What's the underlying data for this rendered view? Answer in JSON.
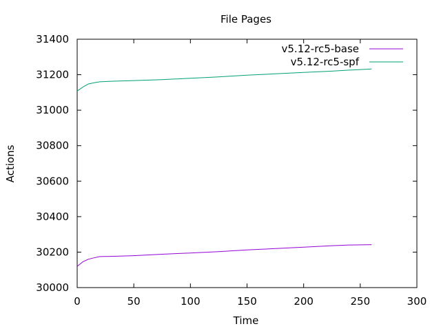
{
  "chart_data": {
    "type": "line",
    "title": "File Pages",
    "xlabel": "Time",
    "ylabel": "Actions",
    "xlim": [
      0,
      300
    ],
    "ylim": [
      30000,
      31400
    ],
    "x_ticks": [
      0,
      50,
      100,
      150,
      200,
      250,
      300
    ],
    "y_ticks": [
      30000,
      30200,
      30400,
      30600,
      30800,
      31000,
      31200,
      31400
    ],
    "grid": false,
    "legend_position": "top-right",
    "series": [
      {
        "name": "v5.12-rc5-base",
        "color": "#9400d3",
        "x": [
          0,
          5,
          10,
          15,
          20,
          30,
          50,
          75,
          100,
          125,
          150,
          175,
          200,
          225,
          240,
          260
        ],
        "y": [
          30120,
          30145,
          30160,
          30168,
          30175,
          30176,
          30180,
          30188,
          30195,
          30203,
          30212,
          30220,
          30228,
          30236,
          30240,
          30242
        ]
      },
      {
        "name": "v5.12-rc5-spf",
        "color": "#009e73",
        "x": [
          0,
          5,
          10,
          15,
          20,
          30,
          50,
          75,
          100,
          125,
          150,
          175,
          200,
          225,
          240,
          260
        ],
        "y": [
          31108,
          31130,
          31148,
          31155,
          31160,
          31163,
          31167,
          31172,
          31180,
          31188,
          31197,
          31205,
          31213,
          31220,
          31226,
          31232
        ]
      }
    ]
  }
}
